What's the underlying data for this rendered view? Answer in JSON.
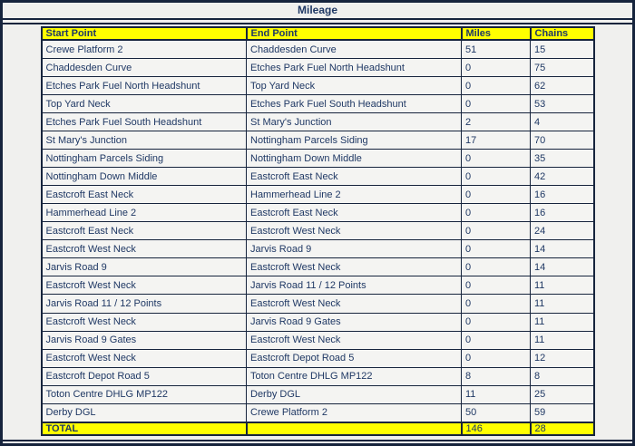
{
  "title": "Mileage",
  "colors": {
    "header_bg": "#ffff00",
    "text": "#1f3864",
    "border": "#16243d",
    "row_bg": "#f4f4f2",
    "page_bg": "#f0f0ee"
  },
  "table": {
    "columns": [
      "Start Point",
      "End Point",
      "Miles",
      "Chains"
    ],
    "rows": [
      [
        "Crewe Platform 2",
        "Chaddesden Curve",
        "51",
        "15"
      ],
      [
        "Chaddesden Curve",
        "Etches Park Fuel North Headshunt",
        "0",
        "75"
      ],
      [
        "Etches Park Fuel North Headshunt",
        "Top Yard Neck",
        "0",
        "62"
      ],
      [
        "Top Yard Neck",
        "Etches Park Fuel South Headshunt",
        "0",
        "53"
      ],
      [
        "Etches Park Fuel South Headshunt",
        "St Mary's Junction",
        "2",
        "4"
      ],
      [
        "St Mary's Junction",
        "Nottingham Parcels Siding",
        "17",
        "70"
      ],
      [
        "Nottingham Parcels Siding",
        "Nottingham Down Middle",
        "0",
        "35"
      ],
      [
        "Nottingham Down Middle",
        "Eastcroft East Neck",
        "0",
        "42"
      ],
      [
        "Eastcroft East Neck",
        "Hammerhead Line 2",
        "0",
        "16"
      ],
      [
        "Hammerhead Line 2",
        "Eastcroft East Neck",
        "0",
        "16"
      ],
      [
        "Eastcroft East Neck",
        "Eastcroft West Neck",
        "0",
        "24"
      ],
      [
        "Eastcroft West Neck",
        "Jarvis Road 9",
        "0",
        "14"
      ],
      [
        "Jarvis Road 9",
        "Eastcroft West Neck",
        "0",
        "14"
      ],
      [
        "Eastcroft West Neck",
        "Jarvis Road 11 / 12 Points",
        "0",
        "11"
      ],
      [
        "Jarvis Road 11 / 12 Points",
        "Eastcroft West Neck",
        "0",
        "11"
      ],
      [
        "Eastcroft West Neck",
        "Jarvis Road 9 Gates",
        "0",
        "11"
      ],
      [
        "Jarvis Road 9 Gates",
        "Eastcroft West Neck",
        "0",
        "11"
      ],
      [
        "Eastcroft West Neck",
        "Eastcroft Depot Road 5",
        "0",
        "12"
      ],
      [
        "Eastcroft Depot Road 5",
        "Toton Centre DHLG MP122",
        "8",
        "8"
      ],
      [
        "Toton Centre DHLG MP122",
        "Derby DGL",
        "11",
        "25"
      ],
      [
        "Derby DGL",
        "Crewe Platform 2",
        "50",
        "59"
      ]
    ],
    "total": {
      "label": "TOTAL",
      "end_point": "",
      "miles": "146",
      "chains": "28"
    }
  }
}
